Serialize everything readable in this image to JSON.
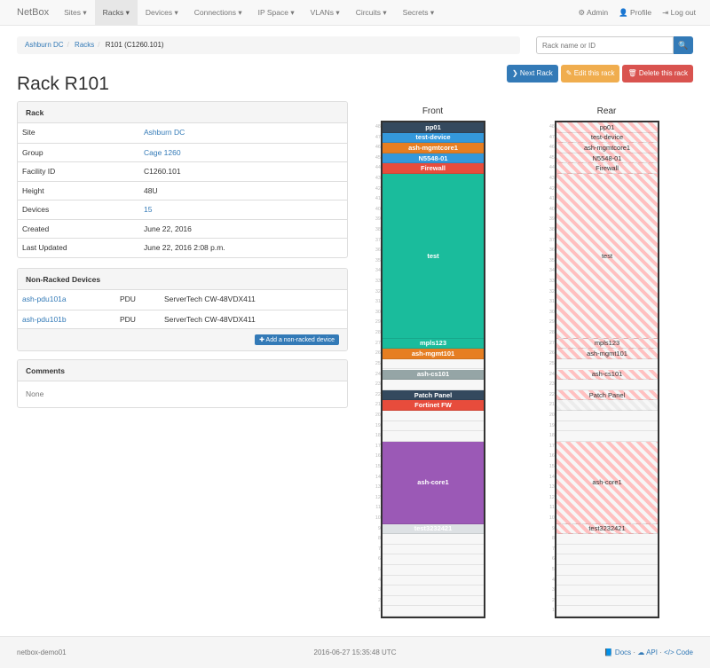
{
  "nav": {
    "brand": "NetBox",
    "items": [
      "Sites ▾",
      "Racks ▾",
      "Devices ▾",
      "Connections ▾",
      "IP Space ▾",
      "VLANs ▾",
      "Circuits ▾",
      "Secrets ▾"
    ],
    "active": 1,
    "right": [
      {
        "icon": "gear-icon",
        "label": "⚙ Admin"
      },
      {
        "icon": "user-icon",
        "label": "👤 Profile"
      },
      {
        "icon": "logout-icon",
        "label": "⇥ Log out"
      }
    ]
  },
  "breadcrumb": [
    "Ashburn DC",
    "Racks",
    "R101 (C1260.101)"
  ],
  "search": {
    "placeholder": "Rack name or ID",
    "icon": "search-icon",
    "button": "🔍"
  },
  "actions": [
    {
      "label": "❯ Next Rack",
      "color": "#337ab7"
    },
    {
      "label": "✎ Edit this rack",
      "color": "#f0ad4e"
    },
    {
      "label": "🗑 Delete this rack",
      "color": "#d9534f"
    }
  ],
  "title": "Rack R101",
  "rack_panel": {
    "heading": "Rack",
    "rows": [
      {
        "k": "Site",
        "v": "Ashburn DC",
        "link": true
      },
      {
        "k": "Group",
        "v": "Cage 1260",
        "link": true
      },
      {
        "k": "Facility ID",
        "v": "C1260.101"
      },
      {
        "k": "Height",
        "v": "48U"
      },
      {
        "k": "Devices",
        "v": "15",
        "link": true
      },
      {
        "k": "Created",
        "v": "June 22, 2016"
      },
      {
        "k": "Last Updated",
        "v": "June 22, 2016 2:08 p.m."
      }
    ]
  },
  "nonracked": {
    "heading": "Non-Racked Devices",
    "rows": [
      {
        "name": "ash-pdu101a",
        "role": "PDU",
        "type": "ServerTech CW-48VDX411"
      },
      {
        "name": "ash-pdu101b",
        "role": "PDU",
        "type": "ServerTech CW-48VDX411"
      }
    ],
    "add_button": "✚ Add a non-racked device"
  },
  "comments": {
    "heading": "Comments",
    "body": "None"
  },
  "elevation": {
    "front_label": "Front",
    "rear_label": "Rear",
    "height_u": 48,
    "devices": [
      {
        "name": "pp01",
        "top": 48,
        "u": 1,
        "color": "#34495e"
      },
      {
        "name": "test-device",
        "top": 47,
        "u": 1,
        "color": "#3498db"
      },
      {
        "name": "ash-mgmtcore1",
        "top": 46,
        "u": 1,
        "color": "#e67e22"
      },
      {
        "name": "N5548-01",
        "top": 45,
        "u": 1,
        "color": "#3498db"
      },
      {
        "name": "Firewall",
        "top": 44,
        "u": 1,
        "color": "#e74c3c"
      },
      {
        "name": "test",
        "top": 43,
        "u": 16,
        "color": "#1abc9c"
      },
      {
        "name": "mpls123",
        "top": 27,
        "u": 1,
        "color": "#1abc9c"
      },
      {
        "name": "ash-mgmt101",
        "top": 26,
        "u": 1,
        "color": "#e67e22"
      },
      {
        "name": "ash-cs101",
        "top": 24,
        "u": 1,
        "color": "#95a5a6"
      },
      {
        "name": "Patch Panel",
        "top": 22,
        "u": 1,
        "color": "#34495e"
      },
      {
        "name": "Fortinet FW",
        "top": 21,
        "u": 1,
        "color": "#e74c3c",
        "rear_blank": true
      },
      {
        "name": "ash-core1",
        "top": 17,
        "u": 8,
        "color": "#9b59b6"
      },
      {
        "name": "test3232421",
        "top": 9,
        "u": 1,
        "color": "#dde1e4"
      }
    ]
  },
  "footer": {
    "host": "netbox-demo01",
    "time": "2016-06-27 15:35:48 UTC",
    "links": [
      "📘 Docs",
      "☁ API",
      "</> Code"
    ],
    "sep": " · "
  }
}
